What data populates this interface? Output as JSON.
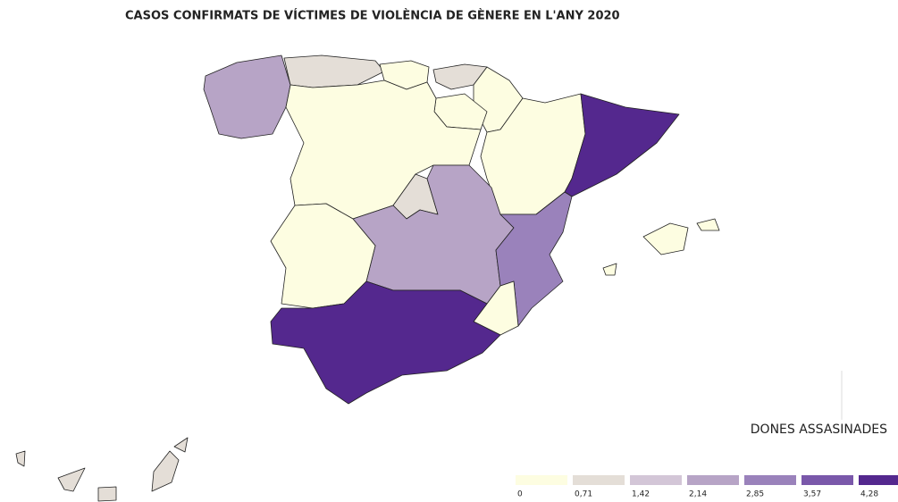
{
  "chart_data": {
    "type": "choropleth",
    "title": "CASOS CONFIRMATS DE VÍCTIMES DE VIOLÈNCIA DE GÈNERE EN L'ANY 2020",
    "legend_title": "DONES ASSASINADES",
    "colors": [
      "#fdfde1",
      "#e4ded7",
      "#d3c6d7",
      "#b7a4c6",
      "#9a82bb",
      "#7a58aa",
      "#54288e"
    ],
    "ticks": [
      0,
      {
        "value": 0.71,
        "label": "0,71"
      },
      {
        "value": 1.42,
        "label": "1,42"
      },
      {
        "value": 2.14,
        "label": "2,14"
      },
      {
        "value": 2.85,
        "label": "2,85"
      },
      {
        "value": 3.57,
        "label": "3,57"
      },
      {
        "value": 4.28,
        "label": "4,28"
      }
    ],
    "values": [
      2.14,
      0.71,
      0,
      0.71,
      0,
      0,
      0,
      0,
      4.28,
      0.71,
      2.14,
      0,
      2.85,
      0,
      4.28,
      0,
      0,
      0,
      0.71,
      0.71,
      0.71,
      0.71,
      0.71
    ]
  }
}
